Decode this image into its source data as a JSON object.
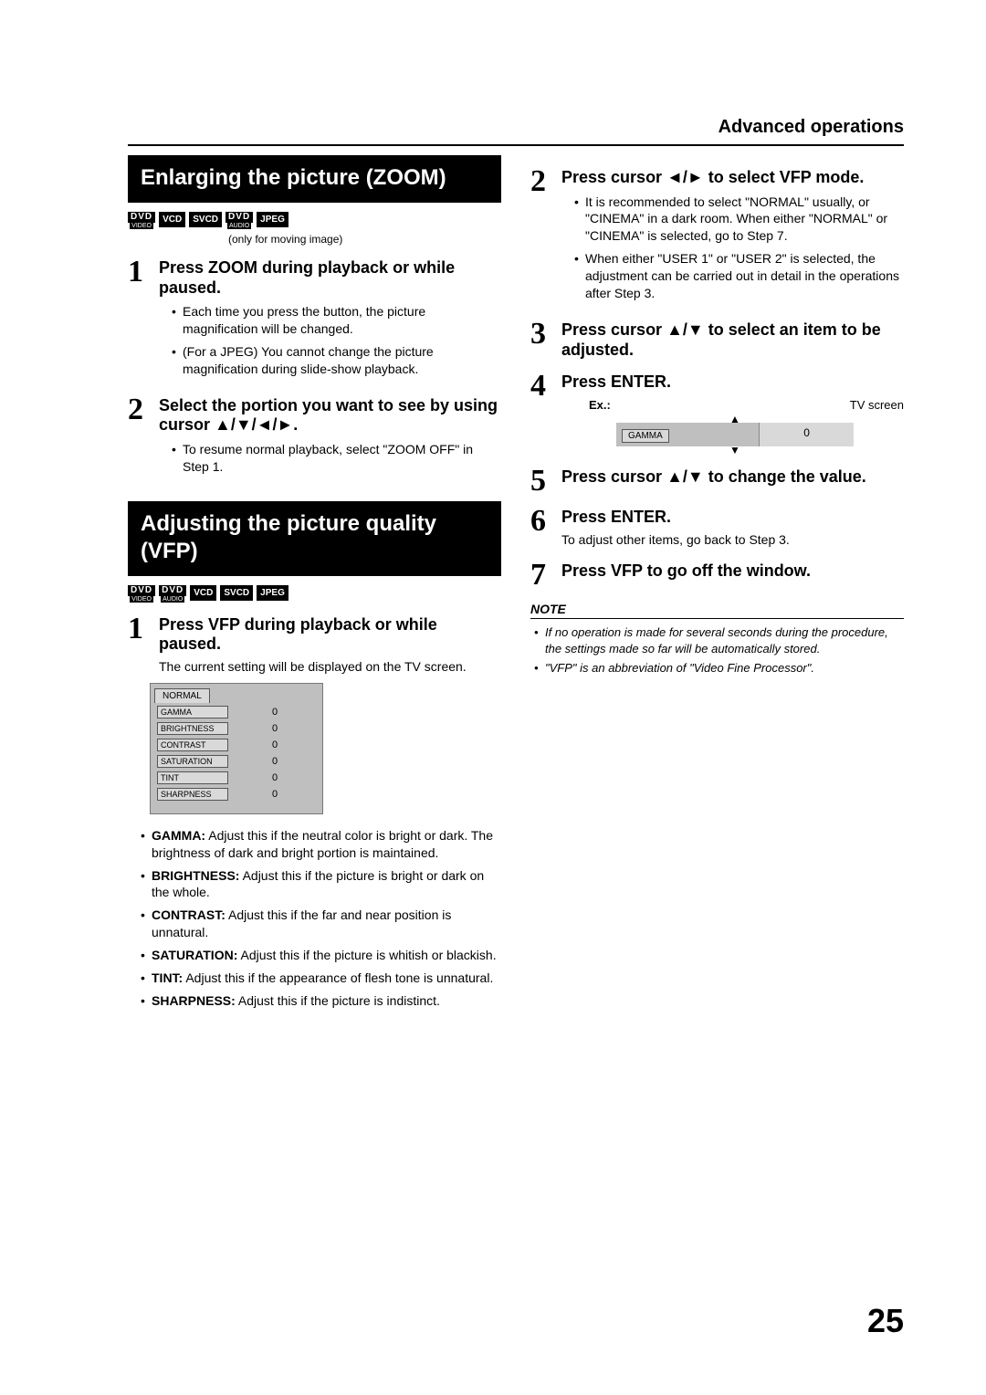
{
  "header": {
    "section": "Advanced operations"
  },
  "page_number": "25",
  "left": {
    "zoom": {
      "title": "Enlarging the picture (ZOOM)",
      "badges1": [
        {
          "top": "DVD",
          "bot": "VIDEO"
        },
        {
          "single": "VCD"
        },
        {
          "single": "SVCD"
        },
        {
          "top": "DVD",
          "bot": "AUDIO"
        },
        {
          "single": "JPEG"
        }
      ],
      "badge_note": "(only for moving image)",
      "steps": [
        {
          "n": "1",
          "head": "Press ZOOM during playback or while paused.",
          "bullets": [
            "Each time you press the button, the picture magnification will be changed.",
            "(For a JPEG) You cannot change the picture magnification during slide-show playback."
          ]
        },
        {
          "n": "2",
          "head": "Select the portion you want to see by using cursor ▲/▼/◄/►.",
          "bullets": [
            "To resume normal playback, select \"ZOOM OFF\" in Step 1."
          ]
        }
      ]
    },
    "vfp": {
      "title": "Adjusting the picture quality (VFP)",
      "badges2": [
        {
          "top": "DVD",
          "bot": "VIDEO"
        },
        {
          "top": "DVD",
          "bot": "AUDIO"
        },
        {
          "single": "VCD"
        },
        {
          "single": "SVCD"
        },
        {
          "single": "JPEG"
        }
      ],
      "step1": {
        "n": "1",
        "head": "Press VFP during playback or while paused.",
        "sub": "The current setting will be displayed on the TV screen."
      },
      "table": {
        "tab": "NORMAL",
        "rows": [
          {
            "name": "GAMMA",
            "val": "0"
          },
          {
            "name": "BRIGHTNESS",
            "val": "0"
          },
          {
            "name": "CONTRAST",
            "val": "0"
          },
          {
            "name": "SATURATION",
            "val": "0"
          },
          {
            "name": "TINT",
            "val": "0"
          },
          {
            "name": "SHARPNESS",
            "val": "0"
          }
        ]
      },
      "defs": [
        {
          "term": "GAMMA:",
          "text": " Adjust this if the neutral color is bright or dark. The brightness of dark and bright portion is maintained."
        },
        {
          "term": "BRIGHTNESS:",
          "text": " Adjust this if the picture is bright or dark on the whole."
        },
        {
          "term": "CONTRAST:",
          "text": " Adjust this if the far and near position is unnatural."
        },
        {
          "term": "SATURATION:",
          "text": " Adjust this if the picture is whitish or blackish."
        },
        {
          "term": "TINT:",
          "text": " Adjust this if the appearance of flesh tone is unnatural."
        },
        {
          "term": "SHARPNESS:",
          "text": " Adjust this if the picture is indistinct."
        }
      ]
    }
  },
  "right": {
    "steps": [
      {
        "n": "2",
        "head": "Press cursor ◄/► to select VFP mode.",
        "bullets": [
          "It is recommended to select \"NORMAL\" usually, or \"CINEMA\" in a dark room. When either \"NORMAL\" or \"CINEMA\" is selected, go to Step 7.",
          "When either \"USER 1\" or \"USER 2\" is selected, the adjustment can be carried out in detail in the operations after Step 3."
        ]
      },
      {
        "n": "3",
        "head": "Press cursor ▲/▼ to select an item to be adjusted."
      },
      {
        "n": "4",
        "head": "Press ENTER.",
        "ex": {
          "left_label": "Ex.:",
          "right_label": "TV screen",
          "name": "GAMMA",
          "val": "0"
        }
      },
      {
        "n": "5",
        "head": "Press cursor ▲/▼ to change the value."
      },
      {
        "n": "6",
        "head": "Press ENTER.",
        "sub": "To adjust other items, go back to Step 3."
      },
      {
        "n": "7",
        "head": "Press VFP to go off the window."
      }
    ],
    "note_head": "NOTE",
    "notes": [
      "If no operation is made for several seconds during the procedure, the settings made so far will be automatically stored.",
      "\"VFP\" is an abbreviation of \"Video Fine Processor\"."
    ]
  }
}
